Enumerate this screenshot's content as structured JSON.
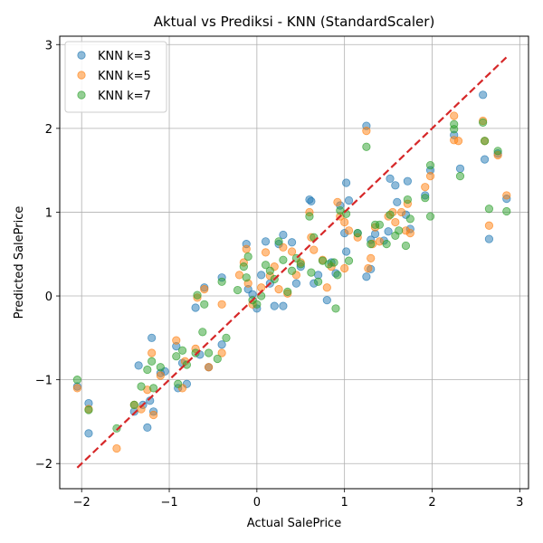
{
  "chart_data": {
    "type": "scatter",
    "title": "Aktual vs Prediksi - KNN (StandardScaler)",
    "xlabel": "Actual SalePrice",
    "ylabel": "Predicted SalePrice",
    "xlim": [
      -2.25,
      3.1
    ],
    "ylim": [
      -2.3,
      3.1
    ],
    "xticks": [
      -2,
      -1,
      0,
      1,
      2,
      3
    ],
    "yticks": [
      -2,
      -1,
      0,
      1,
      2,
      3
    ],
    "grid": true,
    "legend_position": "top-left",
    "reference_line": {
      "from": [
        -2.05,
        -2.05
      ],
      "to": [
        2.85,
        2.85
      ],
      "color": "#d62728",
      "style": "dashed"
    },
    "series": [
      {
        "name": "KNN k=3",
        "color": "#1f77b4",
        "points": [
          [
            -2.05,
            -1.08
          ],
          [
            -1.92,
            -1.28
          ],
          [
            -1.92,
            -1.64
          ],
          [
            -1.4,
            -1.38
          ],
          [
            -1.35,
            -0.83
          ],
          [
            -1.3,
            -1.3
          ],
          [
            -1.25,
            -1.57
          ],
          [
            -1.22,
            -1.25
          ],
          [
            -1.2,
            -0.5
          ],
          [
            -1.18,
            -1.38
          ],
          [
            -1.1,
            -0.92
          ],
          [
            -1.05,
            -0.9
          ],
          [
            -0.92,
            -0.6
          ],
          [
            -0.9,
            -1.1
          ],
          [
            -0.85,
            -0.8
          ],
          [
            -0.8,
            -1.05
          ],
          [
            -0.7,
            -0.14
          ],
          [
            -0.65,
            -0.7
          ],
          [
            -0.6,
            0.1
          ],
          [
            -0.55,
            -0.85
          ],
          [
            -0.4,
            0.22
          ],
          [
            -0.4,
            -0.58
          ],
          [
            -0.12,
            0.62
          ],
          [
            -0.1,
            0.08
          ],
          [
            -0.05,
            0.02
          ],
          [
            0.0,
            -0.15
          ],
          [
            0.05,
            0.25
          ],
          [
            0.1,
            0.65
          ],
          [
            0.15,
            0.15
          ],
          [
            0.2,
            -0.12
          ],
          [
            0.25,
            0.62
          ],
          [
            0.3,
            0.73
          ],
          [
            0.3,
            -0.12
          ],
          [
            0.4,
            0.64
          ],
          [
            0.45,
            0.15
          ],
          [
            0.5,
            0.35
          ],
          [
            0.6,
            1.15
          ],
          [
            0.62,
            1.13
          ],
          [
            0.65,
            0.15
          ],
          [
            0.7,
            0.25
          ],
          [
            0.8,
            -0.05
          ],
          [
            0.85,
            0.4
          ],
          [
            0.9,
            0.27
          ],
          [
            0.95,
            1.08
          ],
          [
            1.0,
            0.75
          ],
          [
            1.02,
            1.35
          ],
          [
            1.02,
            0.53
          ],
          [
            1.05,
            1.14
          ],
          [
            1.15,
            0.75
          ],
          [
            1.25,
            2.03
          ],
          [
            1.25,
            0.23
          ],
          [
            1.3,
            0.67
          ],
          [
            1.3,
            0.32
          ],
          [
            1.35,
            0.74
          ],
          [
            1.45,
            0.66
          ],
          [
            1.5,
            0.77
          ],
          [
            1.52,
            1.4
          ],
          [
            1.58,
            1.32
          ],
          [
            1.6,
            1.12
          ],
          [
            1.7,
            0.97
          ],
          [
            1.72,
            1.37
          ],
          [
            1.75,
            0.8
          ],
          [
            1.92,
            1.2
          ],
          [
            1.98,
            1.5
          ],
          [
            2.25,
            1.92
          ],
          [
            2.32,
            1.52
          ],
          [
            2.58,
            2.4
          ],
          [
            2.6,
            1.63
          ],
          [
            2.65,
            0.68
          ],
          [
            2.75,
            1.7
          ],
          [
            2.85,
            1.16
          ]
        ]
      },
      {
        "name": "KNN k=5",
        "color": "#ff7f0e",
        "points": [
          [
            -2.05,
            -1.1
          ],
          [
            -1.92,
            -1.35
          ],
          [
            -1.6,
            -1.82
          ],
          [
            -1.4,
            -1.3
          ],
          [
            -1.32,
            -1.35
          ],
          [
            -1.25,
            -1.12
          ],
          [
            -1.2,
            -0.68
          ],
          [
            -1.18,
            -1.42
          ],
          [
            -1.1,
            -0.95
          ],
          [
            -0.92,
            -0.53
          ],
          [
            -0.85,
            -1.1
          ],
          [
            -0.82,
            -0.78
          ],
          [
            -0.7,
            -0.63
          ],
          [
            -0.68,
            -0.02
          ],
          [
            -0.6,
            0.08
          ],
          [
            -0.55,
            -0.85
          ],
          [
            -0.4,
            -0.1
          ],
          [
            -0.4,
            -0.68
          ],
          [
            -0.2,
            0.25
          ],
          [
            -0.15,
            0.4
          ],
          [
            -0.12,
            0.56
          ],
          [
            -0.1,
            0.15
          ],
          [
            -0.05,
            -0.1
          ],
          [
            0.05,
            0.1
          ],
          [
            0.1,
            0.52
          ],
          [
            0.15,
            0.24
          ],
          [
            0.2,
            0.35
          ],
          [
            0.25,
            0.08
          ],
          [
            0.3,
            0.58
          ],
          [
            0.35,
            0.03
          ],
          [
            0.4,
            0.53
          ],
          [
            0.45,
            0.25
          ],
          [
            0.5,
            0.4
          ],
          [
            0.6,
            1.0
          ],
          [
            0.62,
            0.7
          ],
          [
            0.65,
            0.55
          ],
          [
            0.75,
            0.43
          ],
          [
            0.8,
            0.1
          ],
          [
            0.85,
            0.35
          ],
          [
            0.92,
            1.12
          ],
          [
            0.95,
            0.95
          ],
          [
            1.0,
            0.88
          ],
          [
            1.0,
            0.33
          ],
          [
            1.05,
            0.78
          ],
          [
            1.15,
            0.7
          ],
          [
            1.25,
            1.97
          ],
          [
            1.27,
            0.33
          ],
          [
            1.3,
            0.45
          ],
          [
            1.32,
            0.62
          ],
          [
            1.35,
            0.82
          ],
          [
            1.4,
            0.65
          ],
          [
            1.5,
            0.95
          ],
          [
            1.55,
            1.0
          ],
          [
            1.58,
            0.88
          ],
          [
            1.65,
            1.0
          ],
          [
            1.7,
            0.78
          ],
          [
            1.72,
            1.1
          ],
          [
            1.75,
            0.75
          ],
          [
            1.92,
            1.3
          ],
          [
            1.98,
            1.43
          ],
          [
            2.25,
            1.86
          ],
          [
            2.3,
            1.85
          ],
          [
            2.58,
            2.09
          ],
          [
            2.6,
            1.85
          ],
          [
            2.65,
            0.84
          ],
          [
            2.75,
            1.68
          ],
          [
            2.85,
            1.2
          ],
          [
            2.25,
            2.15
          ]
        ]
      },
      {
        "name": "KNN k=7",
        "color": "#2ca02c",
        "points": [
          [
            -2.05,
            -1.0
          ],
          [
            -1.92,
            -1.36
          ],
          [
            -1.6,
            -1.58
          ],
          [
            -1.4,
            -1.3
          ],
          [
            -1.32,
            -1.08
          ],
          [
            -1.25,
            -0.88
          ],
          [
            -1.2,
            -0.78
          ],
          [
            -1.18,
            -1.1
          ],
          [
            -1.1,
            -0.85
          ],
          [
            -0.92,
            -0.72
          ],
          [
            -0.9,
            -1.05
          ],
          [
            -0.85,
            -0.65
          ],
          [
            -0.8,
            -0.82
          ],
          [
            -0.7,
            -0.68
          ],
          [
            -0.68,
            0.01
          ],
          [
            -0.62,
            -0.43
          ],
          [
            -0.6,
            -0.1
          ],
          [
            -0.55,
            -0.68
          ],
          [
            -0.45,
            -0.75
          ],
          [
            -0.4,
            0.17
          ],
          [
            -0.35,
            -0.5
          ],
          [
            -0.22,
            0.07
          ],
          [
            -0.15,
            0.35
          ],
          [
            -0.12,
            0.22
          ],
          [
            -0.1,
            0.47
          ],
          [
            -0.05,
            -0.05
          ],
          [
            0.0,
            -0.1
          ],
          [
            0.05,
            0.0
          ],
          [
            0.1,
            0.37
          ],
          [
            0.15,
            0.3
          ],
          [
            0.2,
            0.2
          ],
          [
            0.25,
            0.65
          ],
          [
            0.3,
            0.43
          ],
          [
            0.35,
            0.05
          ],
          [
            0.4,
            0.3
          ],
          [
            0.45,
            0.45
          ],
          [
            0.5,
            0.38
          ],
          [
            0.6,
            0.95
          ],
          [
            0.62,
            0.28
          ],
          [
            0.65,
            0.7
          ],
          [
            0.7,
            0.17
          ],
          [
            0.75,
            0.42
          ],
          [
            0.82,
            0.38
          ],
          [
            0.88,
            0.4
          ],
          [
            0.92,
            0.25
          ],
          [
            0.9,
            -0.15
          ],
          [
            0.95,
            1.02
          ],
          [
            1.02,
            0.98
          ],
          [
            1.05,
            0.42
          ],
          [
            1.15,
            0.75
          ],
          [
            1.25,
            1.78
          ],
          [
            1.3,
            0.62
          ],
          [
            1.35,
            0.85
          ],
          [
            1.4,
            0.85
          ],
          [
            1.48,
            0.62
          ],
          [
            1.52,
            0.97
          ],
          [
            1.58,
            0.72
          ],
          [
            1.62,
            0.78
          ],
          [
            1.7,
            0.6
          ],
          [
            1.72,
            1.15
          ],
          [
            1.75,
            0.92
          ],
          [
            1.92,
            1.17
          ],
          [
            1.98,
            0.95
          ],
          [
            1.98,
            1.56
          ],
          [
            2.25,
            1.99
          ],
          [
            2.25,
            2.05
          ],
          [
            2.32,
            1.43
          ],
          [
            2.58,
            2.07
          ],
          [
            2.6,
            1.85
          ],
          [
            2.65,
            1.04
          ],
          [
            2.75,
            1.73
          ],
          [
            2.85,
            1.01
          ]
        ]
      }
    ]
  }
}
